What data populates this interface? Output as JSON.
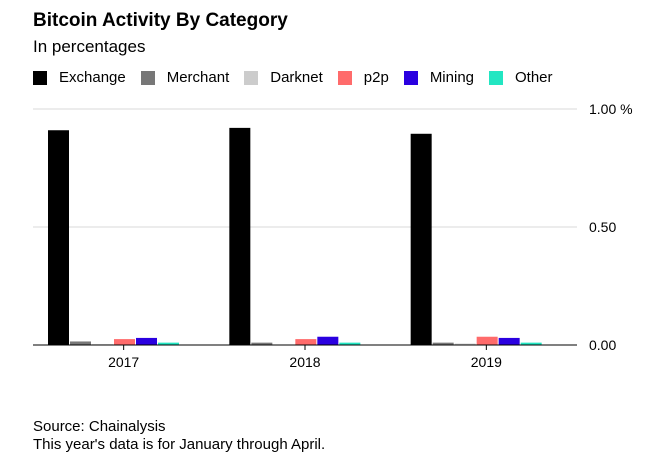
{
  "title": "Bitcoin Activity By Category",
  "subtitle": "In percentages",
  "source": "Source: Chainalysis",
  "note": "This year's data is for January through April.",
  "chart_data": {
    "type": "bar",
    "title": "Bitcoin Activity By Category",
    "subtitle": "In percentages",
    "categories": [
      "2017",
      "2018",
      "2019"
    ],
    "series": [
      {
        "name": "Exchange",
        "color": "#000000",
        "values": [
          0.91,
          0.92,
          0.895
        ]
      },
      {
        "name": "Merchant",
        "color": "#777777",
        "values": [
          0.015,
          0.01,
          0.01
        ]
      },
      {
        "name": "Darknet",
        "color": "#cccccc",
        "values": [
          0.003,
          0.002,
          0.006
        ]
      },
      {
        "name": "p2p",
        "color": "#ff6b6b",
        "values": [
          0.025,
          0.025,
          0.035
        ]
      },
      {
        "name": "Mining",
        "color": "#2a00e0",
        "values": [
          0.03,
          0.035,
          0.03
        ]
      },
      {
        "name": "Other",
        "color": "#22e6c2",
        "values": [
          0.01,
          0.01,
          0.01
        ]
      }
    ],
    "y_ticks": [
      "0.00",
      "0.50",
      "1.00 %"
    ],
    "y_tick_values": [
      0,
      0.5,
      1.0
    ],
    "ylim": [
      0,
      1.0
    ],
    "xlabel": "",
    "ylabel": "",
    "grid": true,
    "legend_position": "top"
  }
}
